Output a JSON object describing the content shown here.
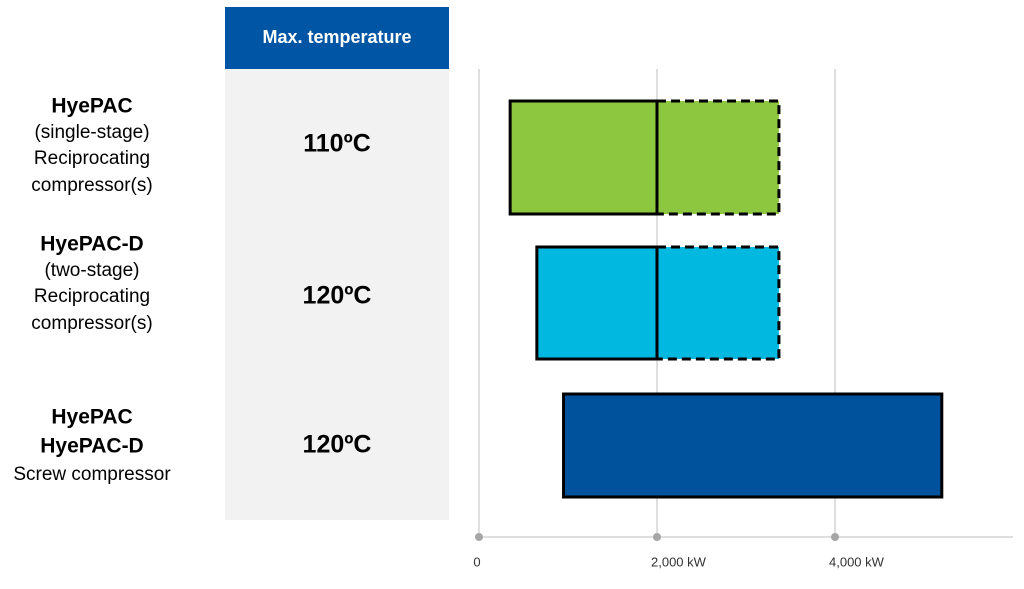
{
  "chart_data": {
    "type": "range-bar",
    "column_header": "Max. temperature",
    "rows": [
      {
        "title_lines": [
          "HyePAC"
        ],
        "detail_lines": [
          "(single-stage)",
          "Reciprocating",
          "compressor(s)"
        ],
        "temperature": "110ºC",
        "color": "#8dc63f",
        "start": 350,
        "solid_end": 2000,
        "dashed_end": 3370
      },
      {
        "title_lines": [
          "HyePAC-D"
        ],
        "detail_lines": [
          "(two-stage)",
          "Reciprocating",
          "compressor(s)"
        ],
        "temperature": "120ºC",
        "color": "#00b8e0",
        "start": 650,
        "solid_end": 2000,
        "dashed_end": 3370
      },
      {
        "title_lines": [
          "HyePAC",
          "HyePAC-D"
        ],
        "detail_lines": [
          "Screw compressor"
        ],
        "temperature": "120ºC",
        "color": "#00529c",
        "start": 950,
        "solid_end": 5200
      }
    ],
    "xlim": [
      0,
      6000
    ],
    "xticks": [
      0,
      {
        "value": 2000,
        "label": "2,000 kW"
      },
      {
        "value": 4000,
        "label": "4,000 kW"
      }
    ],
    "grid": true
  }
}
